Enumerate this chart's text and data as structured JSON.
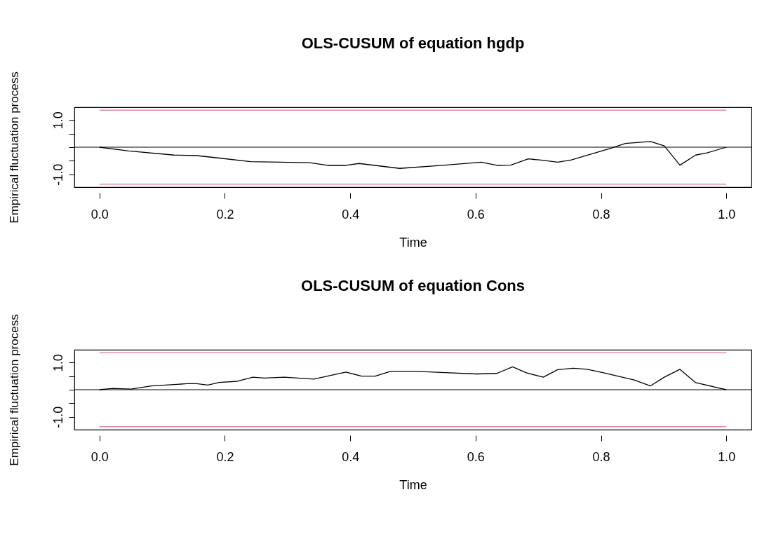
{
  "chart_data": [
    {
      "type": "line",
      "title": "OLS-CUSUM of equation hgdp",
      "xlabel": "Time",
      "ylabel": "Empirical fluctuation process",
      "xlim": [
        -0.04,
        1.04
      ],
      "ylim": [
        -1.47,
        1.47
      ],
      "xticks": [
        {
          "value": 0,
          "label": "0.0"
        },
        {
          "value": 0.2,
          "label": "0.2"
        },
        {
          "value": 0.4,
          "label": "0.4"
        },
        {
          "value": 0.6,
          "label": "0.6"
        },
        {
          "value": 0.8,
          "label": "0.8"
        },
        {
          "value": 1,
          "label": "1.0"
        }
      ],
      "yticks": [
        {
          "value": -1,
          "label": "-1.0"
        },
        {
          "value": -0.5,
          "label": null
        },
        {
          "value": 0,
          "label": null
        },
        {
          "value": 0.5,
          "label": null
        },
        {
          "value": 1,
          "label": "1.0"
        }
      ],
      "line_style": "solid",
      "ref_lines": [
        {
          "axis": "y",
          "value": 0,
          "color": "#000000"
        }
      ],
      "series": [
        {
          "color": "#000000",
          "x": [
            0,
            0.047,
            0.119,
            0.155,
            0.191,
            0.241,
            0.335,
            0.364,
            0.393,
            0.414,
            0.479,
            0.551,
            0.609,
            0.634,
            0.656,
            0.684,
            0.702,
            0.731,
            0.753,
            0.818,
            0.839,
            0.879,
            0.901,
            0.926,
            0.951,
            0.969,
            1.0
          ],
          "values": [
            0,
            -0.14,
            -0.29,
            -0.31,
            -0.4,
            -0.53,
            -0.57,
            -0.67,
            -0.67,
            -0.6,
            -0.78,
            -0.66,
            -0.55,
            -0.67,
            -0.66,
            -0.43,
            -0.47,
            -0.55,
            -0.47,
            -0.02,
            0.14,
            0.21,
            0.05,
            -0.66,
            -0.29,
            -0.21,
            0
          ]
        },
        {
          "color": "#df8fa3",
          "x": [
            0,
            1
          ],
          "values": [
            1.36,
            1.36
          ]
        },
        {
          "color": "#df8fa3",
          "x": [
            0,
            1
          ],
          "values": [
            -1.36,
            -1.36
          ]
        }
      ]
    },
    {
      "type": "line",
      "title": "OLS-CUSUM of equation Cons",
      "xlabel": "Time",
      "ylabel": "Empirical fluctuation process",
      "xlim": [
        -0.04,
        1.04
      ],
      "ylim": [
        -1.47,
        1.47
      ],
      "xticks": [
        {
          "value": 0,
          "label": "0.0"
        },
        {
          "value": 0.2,
          "label": "0.2"
        },
        {
          "value": 0.4,
          "label": "0.4"
        },
        {
          "value": 0.6,
          "label": "0.6"
        },
        {
          "value": 0.8,
          "label": "0.8"
        },
        {
          "value": 1,
          "label": "1.0"
        }
      ],
      "yticks": [
        {
          "value": -1,
          "label": "-1.0"
        },
        {
          "value": -0.5,
          "label": null
        },
        {
          "value": 0,
          "label": null
        },
        {
          "value": 0.5,
          "label": null
        },
        {
          "value": 1,
          "label": "1.0"
        }
      ],
      "line_style": "solid",
      "ref_lines": [
        {
          "axis": "y",
          "value": 0,
          "color": "#000000"
        }
      ],
      "series": [
        {
          "color": "#000000",
          "x": [
            0,
            0.022,
            0.05,
            0.083,
            0.14,
            0.155,
            0.173,
            0.191,
            0.22,
            0.245,
            0.263,
            0.295,
            0.342,
            0.393,
            0.418,
            0.44,
            0.465,
            0.501,
            0.551,
            0.601,
            0.634,
            0.659,
            0.681,
            0.708,
            0.731,
            0.756,
            0.778,
            0.803,
            0.853,
            0.879,
            0.901,
            0.926,
            0.951,
            1.0
          ],
          "values": [
            0,
            0.05,
            0.02,
            0.14,
            0.22,
            0.22,
            0.17,
            0.27,
            0.31,
            0.46,
            0.43,
            0.46,
            0.39,
            0.65,
            0.5,
            0.5,
            0.68,
            0.68,
            0.63,
            0.58,
            0.6,
            0.84,
            0.62,
            0.46,
            0.74,
            0.79,
            0.75,
            0.63,
            0.36,
            0.14,
            0.46,
            0.75,
            0.26,
            0
          ]
        },
        {
          "color": "#df8fa3",
          "x": [
            0,
            1
          ],
          "values": [
            1.36,
            1.36
          ]
        },
        {
          "color": "#df8fa3",
          "x": [
            0,
            1
          ],
          "values": [
            -1.36,
            -1.36
          ]
        }
      ]
    }
  ]
}
